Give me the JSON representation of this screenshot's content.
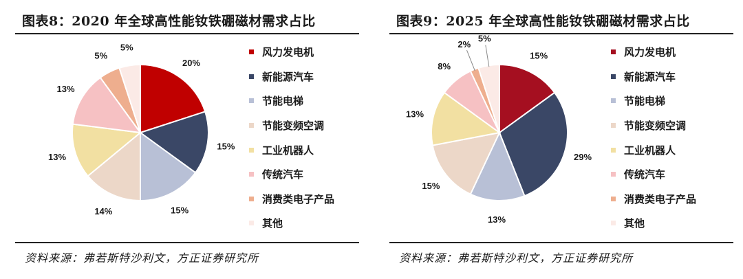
{
  "chart_data": [
    {
      "type": "pie",
      "title": "图表8：2020 年全球高性能钕铁硼磁材需求占比",
      "source": "资料来源：弗若斯特沙利文，方正证券研究所",
      "legend_position": "right",
      "slices": [
        {
          "label": "风力发电机",
          "value": 20,
          "display": "20%",
          "color": "#c00000"
        },
        {
          "label": "新能源汽车",
          "value": 15,
          "display": "15%",
          "color": "#3a4766"
        },
        {
          "label": "节能电梯",
          "value": 15,
          "display": "15%",
          "color": "#b8c0d6"
        },
        {
          "label": "节能变频空调",
          "value": 14,
          "display": "14%",
          "color": "#ecd7c8"
        },
        {
          "label": "工业机器人",
          "value": 13,
          "display": "13%",
          "color": "#f2e0a2"
        },
        {
          "label": "传统汽车",
          "value": 13,
          "display": "13%",
          "color": "#f6c1c3"
        },
        {
          "label": "消费类电子产品",
          "value": 5,
          "display": "5%",
          "color": "#eeae8e"
        },
        {
          "label": "其他",
          "value": 5,
          "display": "5%",
          "color": "#fbeae6"
        }
      ]
    },
    {
      "type": "pie",
      "title": "图表9：2025 年全球高性能钕铁硼磁材需求占比",
      "source": "资料来源：弗若斯特沙利文，方正证券研究所",
      "legend_position": "right",
      "slices": [
        {
          "label": "风力发电机",
          "value": 15,
          "display": "15%",
          "color": "#a50f20"
        },
        {
          "label": "新能源汽车",
          "value": 29,
          "display": "29%",
          "color": "#3a4766"
        },
        {
          "label": "节能电梯",
          "value": 13,
          "display": "13%",
          "color": "#b8c0d6"
        },
        {
          "label": "节能变频空调",
          "value": 15,
          "display": "15%",
          "color": "#ecd7c8"
        },
        {
          "label": "工业机器人",
          "value": 13,
          "display": "13%",
          "color": "#f2e0a2"
        },
        {
          "label": "传统汽车",
          "value": 8,
          "display": "8%",
          "color": "#f6c1c3"
        },
        {
          "label": "消费类电子产品",
          "value": 2,
          "display": "2%",
          "color": "#eeae8e"
        },
        {
          "label": "其他",
          "value": 5,
          "display": "5%",
          "color": "#fbeae6"
        }
      ]
    }
  ]
}
